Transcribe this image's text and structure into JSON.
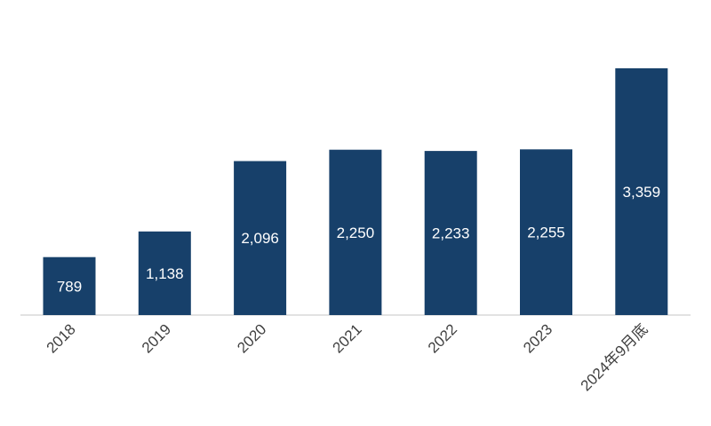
{
  "chart_data": {
    "type": "bar",
    "categories": [
      "2018",
      "2019",
      "2020",
      "2021",
      "2022",
      "2023",
      "2024年9月底"
    ],
    "values": [
      789,
      1138,
      2096,
      2250,
      2233,
      2255,
      3359
    ],
    "value_labels": [
      "789",
      "1,138",
      "2,096",
      "2,250",
      "2,233",
      "2,255",
      "3,359"
    ],
    "title": "",
    "xlabel": "",
    "ylabel": "",
    "ylim": [
      0,
      3600
    ],
    "grid": false,
    "legend": "none",
    "bar_color": "#17406a",
    "baseline_color": "#d9d9d9"
  }
}
